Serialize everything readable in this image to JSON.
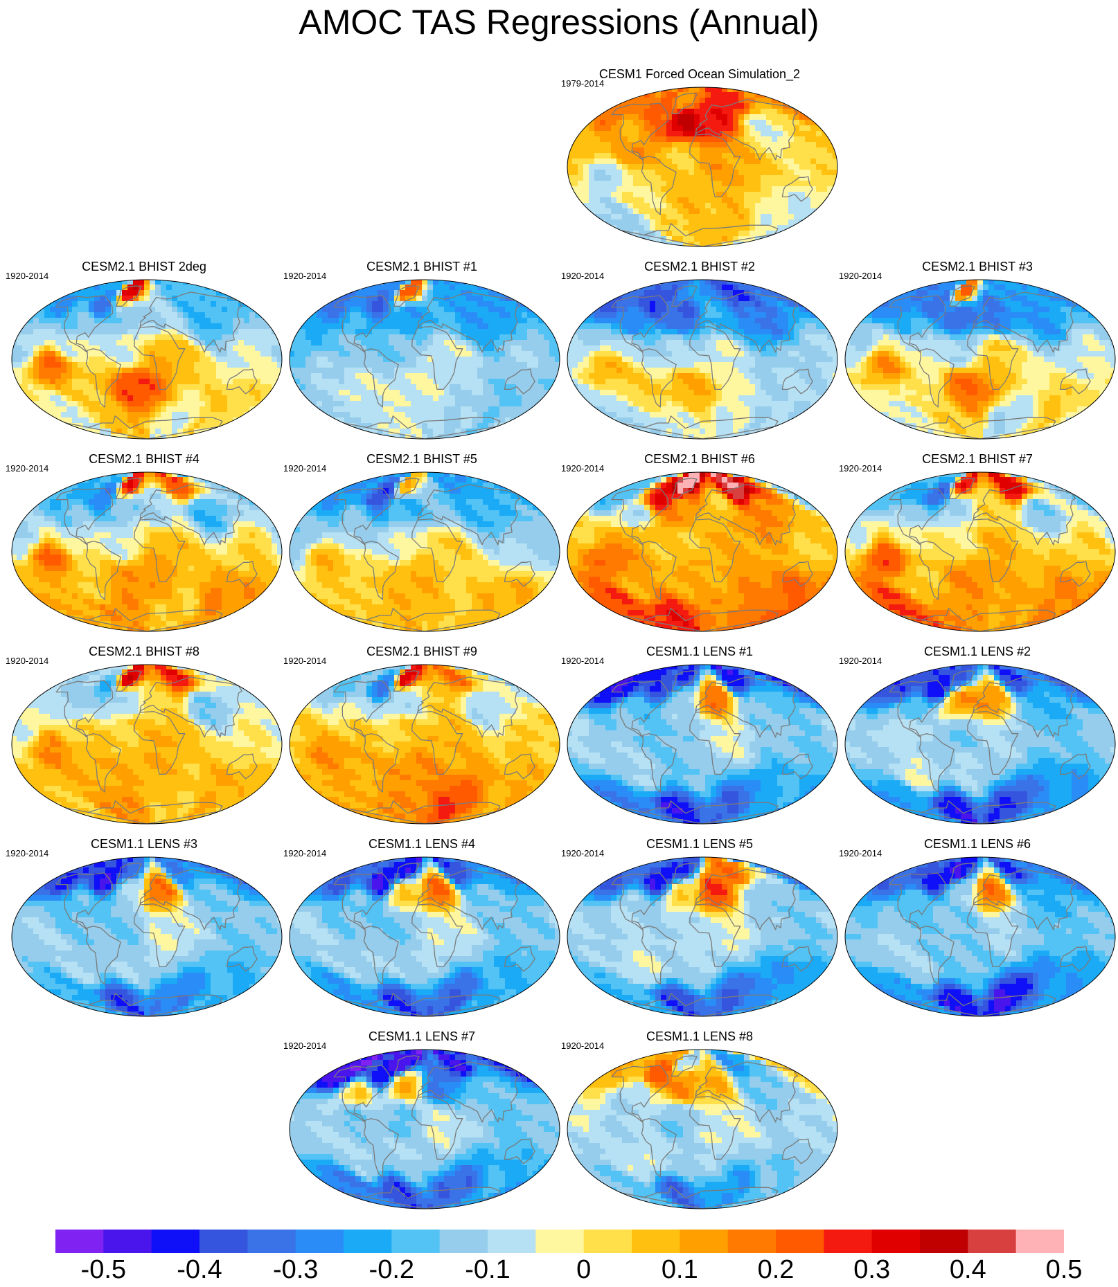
{
  "title": "AMOC TAS Regressions (Annual)",
  "colorbar": {
    "colors": [
      "#7f22f2",
      "#4a14ec",
      "#1010f8",
      "#3555de",
      "#3a72e8",
      "#2a8cf7",
      "#1aaaf6",
      "#52c3f4",
      "#96cdec",
      "#b6e1f4",
      "#fff7a0",
      "#ffe04a",
      "#ffc010",
      "#ffa000",
      "#ff7a00",
      "#ff5a00",
      "#f41a10",
      "#e00000",
      "#c00000",
      "#d84040",
      "#ffb2b6"
    ],
    "labels": [
      "-0.5",
      "-0.4",
      "-0.3",
      "-0.2",
      "-0.1",
      "0",
      "0.1",
      "0.2",
      "0.3",
      "0.4",
      "0.5"
    ]
  },
  "panels": [
    {
      "title": "CESM1 Forced Ocean Simulation_2",
      "period": "1979-2014",
      "pattern": [
        0.18,
        0.22,
        0.12,
        0.28,
        0.35,
        0.3,
        0.1,
        -0.05,
        0.08,
        0.15,
        -0.1,
        0.05,
        0.12,
        0.02,
        0.0,
        0.08,
        -0.12,
        0.05,
        0.08,
        -0.05
      ]
    },
    {
      "title": "CESM2.1 BHIST 2deg",
      "period": "1920-2014",
      "pattern": [
        -0.25,
        -0.3,
        0.35,
        -0.2,
        -0.15,
        -0.1,
        -0.15,
        -0.2,
        -0.1,
        -0.05,
        0.2,
        -0.05,
        0.1,
        -0.05,
        0.05,
        0.25,
        -0.05,
        0.08,
        -0.05,
        0.05
      ]
    },
    {
      "title": "CESM2.1 BHIST #1",
      "period": "1920-2014",
      "pattern": [
        -0.3,
        -0.35,
        0.25,
        -0.25,
        -0.25,
        -0.2,
        -0.2,
        -0.25,
        -0.2,
        -0.15,
        -0.1,
        -0.15,
        -0.05,
        -0.1,
        -0.05,
        -0.05,
        -0.1,
        -0.05,
        -0.1,
        -0.15
      ]
    },
    {
      "title": "CESM2.1 BHIST #2",
      "period": "1920-2014",
      "pattern": [
        -0.35,
        -0.4,
        -0.25,
        -0.4,
        -0.35,
        -0.2,
        -0.25,
        -0.3,
        -0.1,
        -0.1,
        0.1,
        -0.1,
        -0.05,
        -0.1,
        0.05,
        0.1,
        -0.1,
        -0.05,
        -0.05,
        -0.1
      ]
    },
    {
      "title": "CESM2.1 BHIST #3",
      "period": "1920-2014",
      "pattern": [
        -0.3,
        -0.35,
        0.2,
        -0.25,
        -0.35,
        -0.3,
        -0.2,
        -0.25,
        -0.1,
        -0.05,
        0.15,
        -0.1,
        0.05,
        -0.05,
        0.0,
        0.2,
        -0.05,
        0.05,
        -0.1,
        0.05
      ]
    },
    {
      "title": "CESM2.1 BHIST #4",
      "period": "1920-2014",
      "pattern": [
        -0.2,
        -0.3,
        0.3,
        0.25,
        -0.15,
        -0.1,
        -0.15,
        -0.2,
        -0.1,
        -0.05,
        0.2,
        -0.05,
        0.1,
        0.05,
        0.05,
        0.15,
        0.1,
        0.15,
        0.05,
        0.15
      ]
    },
    {
      "title": "CESM2.1 BHIST #5",
      "period": "1920-2014",
      "pattern": [
        -0.25,
        -0.4,
        0.1,
        -0.25,
        -0.2,
        -0.15,
        -0.15,
        -0.2,
        -0.15,
        -0.1,
        0.1,
        -0.05,
        0.05,
        -0.1,
        0.05,
        0.1,
        0.05,
        0.1,
        0.05,
        0.1
      ]
    },
    {
      "title": "CESM2.1 BHIST #6",
      "period": "1920-2014",
      "pattern": [
        -0.2,
        0.3,
        0.5,
        0.45,
        0.15,
        0.05,
        -0.1,
        0.15,
        0.05,
        0.1,
        0.2,
        0.05,
        0.1,
        0.05,
        0.1,
        0.1,
        0.25,
        0.3,
        0.15,
        0.2
      ]
    },
    {
      "title": "CESM2.1 BHIST #7",
      "period": "1920-2014",
      "pattern": [
        -0.2,
        -0.35,
        0.3,
        0.35,
        -0.1,
        0.05,
        -0.1,
        -0.15,
        -0.05,
        0.0,
        0.25,
        0.0,
        0.1,
        0.05,
        0.05,
        0.15,
        0.25,
        0.15,
        0.1,
        0.15
      ]
    },
    {
      "title": "CESM2.1 BHIST #8",
      "period": "1920-2014",
      "pattern": [
        -0.1,
        -0.2,
        0.35,
        0.3,
        -0.1,
        0.05,
        -0.1,
        -0.15,
        -0.05,
        0.05,
        0.15,
        0.05,
        0.1,
        0.0,
        0.1,
        0.1,
        0.05,
        0.15,
        0.05,
        0.1
      ]
    },
    {
      "title": "CESM2.1 BHIST #9",
      "period": "1920-2014",
      "pattern": [
        -0.15,
        -0.3,
        0.35,
        0.2,
        -0.1,
        0.05,
        -0.05,
        -0.1,
        0.05,
        0.05,
        0.15,
        0.05,
        0.1,
        0.05,
        0.1,
        0.15,
        0.1,
        0.15,
        0.25,
        0.1
      ]
    },
    {
      "title": "CESM1.1 LENS #1",
      "period": "1920-2014",
      "pattern": [
        -0.45,
        -0.4,
        -0.4,
        -0.45,
        -0.1,
        0.2,
        -0.15,
        -0.15,
        -0.1,
        -0.15,
        -0.1,
        -0.15,
        -0.05,
        -0.15,
        -0.1,
        -0.15,
        -0.3,
        -0.45,
        -0.35,
        -0.2
      ]
    },
    {
      "title": "CESM1.1 LENS #2",
      "period": "1920-2014",
      "pattern": [
        -0.4,
        -0.45,
        -0.35,
        -0.4,
        0.15,
        0.15,
        -0.15,
        -0.2,
        -0.1,
        -0.05,
        -0.1,
        -0.15,
        -0.1,
        -0.15,
        -0.05,
        -0.1,
        -0.25,
        -0.45,
        -0.4,
        -0.25
      ]
    },
    {
      "title": "CESM1.1 LENS #3",
      "period": "1920-2014",
      "pattern": [
        -0.4,
        -0.45,
        -0.35,
        -0.3,
        -0.1,
        0.2,
        -0.15,
        -0.15,
        -0.1,
        -0.15,
        -0.1,
        -0.15,
        -0.05,
        -0.15,
        -0.1,
        -0.1,
        -0.2,
        -0.4,
        -0.3,
        -0.2
      ]
    },
    {
      "title": "CESM1.1 LENS #4",
      "period": "1920-2014",
      "pattern": [
        -0.35,
        -0.45,
        -0.45,
        -0.4,
        0.05,
        0.2,
        -0.15,
        -0.15,
        -0.1,
        -0.15,
        -0.1,
        -0.15,
        -0.05,
        -0.15,
        -0.1,
        -0.1,
        -0.25,
        -0.4,
        -0.35,
        -0.2
      ]
    },
    {
      "title": "CESM1.1 LENS #5",
      "period": "1920-2014",
      "pattern": [
        -0.35,
        -0.45,
        -0.4,
        0.2,
        0.05,
        0.25,
        -0.1,
        -0.15,
        -0.1,
        -0.1,
        -0.1,
        -0.1,
        -0.05,
        -0.15,
        -0.05,
        -0.1,
        -0.2,
        -0.4,
        -0.35,
        -0.25
      ]
    },
    {
      "title": "CESM1.1 LENS #6",
      "period": "1920-2014",
      "pattern": [
        -0.35,
        -0.45,
        -0.45,
        -0.4,
        -0.1,
        0.2,
        -0.15,
        -0.2,
        -0.15,
        -0.15,
        -0.1,
        -0.15,
        -0.1,
        -0.15,
        -0.1,
        -0.15,
        -0.25,
        -0.45,
        -0.45,
        -0.25
      ]
    },
    {
      "title": "CESM1.1 LENS #7",
      "period": "1920-2014",
      "pattern": [
        -0.5,
        -0.45,
        -0.5,
        -0.45,
        0.1,
        -0.3,
        0.05,
        -0.15,
        -0.1,
        -0.15,
        -0.1,
        -0.15,
        -0.05,
        -0.15,
        -0.1,
        -0.1,
        -0.3,
        -0.4,
        -0.35,
        -0.2
      ]
    },
    {
      "title": "CESM1.1 LENS #8",
      "period": "1920-2014",
      "pattern": [
        0.1,
        0.25,
        -0.1,
        -0.25,
        0.15,
        0.1,
        -0.1,
        -0.15,
        -0.05,
        -0.1,
        -0.1,
        -0.15,
        -0.05,
        -0.1,
        -0.05,
        -0.1,
        -0.15,
        -0.35,
        -0.25,
        -0.15
      ]
    }
  ]
}
